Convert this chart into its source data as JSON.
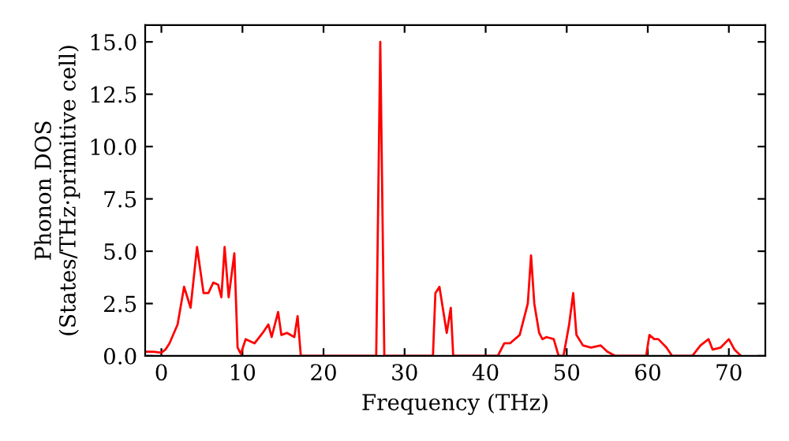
{
  "chart_data": {
    "type": "line",
    "xlabel": "Frequency (THz)",
    "ylabel": "Phonon DOS\n(States/THz·primitive cell)",
    "xlim": [
      -2,
      74.5
    ],
    "ylim": [
      0,
      15.8
    ],
    "xticks": [
      0,
      10,
      20,
      30,
      40,
      50,
      60,
      70
    ],
    "yticks": [
      {
        "value": 0,
        "label": "0.0"
      },
      {
        "value": 2.5,
        "label": "2.5"
      },
      {
        "value": 5,
        "label": "5.0"
      },
      {
        "value": 7.5,
        "label": "7.5"
      },
      {
        "value": 10,
        "label": "10.0"
      },
      {
        "value": 12.5,
        "label": "12.5"
      },
      {
        "value": 15,
        "label": "15.0"
      }
    ],
    "grid": false,
    "legend": false,
    "series": [
      {
        "color": "#ff0000",
        "x": [
          -2,
          -1,
          0,
          0.5,
          1,
          2,
          2.8,
          3.6,
          4.4,
          5.2,
          5.8,
          6.4,
          7,
          7.4,
          7.8,
          8.3,
          9.0,
          9.4,
          9.8,
          10.4,
          11.5,
          12.5,
          13.2,
          13.6,
          14.4,
          14.8,
          15.5,
          16.4,
          16.8,
          17.2,
          26.5,
          27.0,
          27.5,
          33.5,
          33.8,
          34.3,
          35.2,
          35.7,
          36.0,
          41.5,
          42.3,
          43,
          44.2,
          45.2,
          45.6,
          46.0,
          46.6,
          47,
          47.5,
          48.4,
          49,
          49.6,
          50.3,
          50.8,
          51.2,
          52,
          53,
          54.2,
          55,
          56,
          59.8,
          60.2,
          60.8,
          61.3,
          62.3,
          63,
          65.5,
          66.5,
          67.5,
          68,
          69,
          70,
          70.7,
          71.5
        ],
        "values": [
          0.2,
          0.2,
          0.15,
          0.3,
          0.6,
          1.5,
          3.3,
          2.3,
          5.2,
          3.0,
          3.0,
          3.5,
          3.4,
          2.8,
          5.2,
          2.8,
          4.9,
          0.4,
          0.1,
          0.8,
          0.6,
          1.1,
          1.5,
          0.9,
          2.1,
          1.0,
          1.1,
          0.9,
          1.9,
          0,
          0,
          15.0,
          0,
          0,
          3.0,
          3.3,
          1.1,
          2.3,
          0,
          0,
          0.6,
          0.6,
          1.0,
          2.5,
          4.8,
          2.5,
          1.1,
          0.8,
          0.9,
          0.8,
          0,
          0,
          1.5,
          3.0,
          1.0,
          0.5,
          0.4,
          0.5,
          0.2,
          0,
          0,
          1.0,
          0.8,
          0.8,
          0.4,
          0,
          0,
          0.5,
          0.8,
          0.3,
          0.4,
          0.8,
          0.3,
          0
        ]
      }
    ]
  }
}
